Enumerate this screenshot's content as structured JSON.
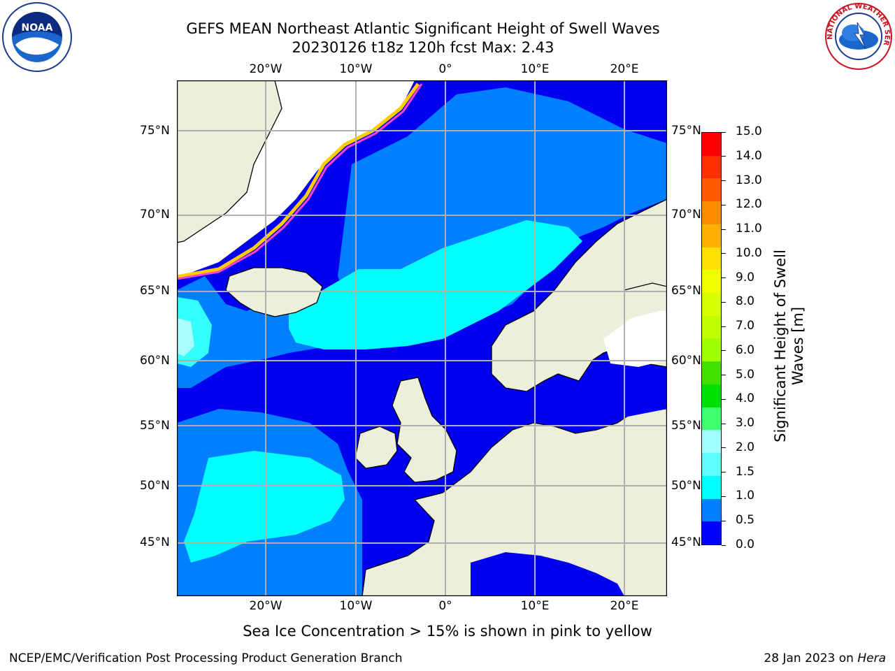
{
  "title": {
    "line1": "GEFS MEAN Northeast Atlantic Significant Height of Swell Waves",
    "line2": "20230126 t18z 120h fcst   Max: 2.43"
  },
  "map": {
    "lon_labels": [
      "20°W",
      "10°W",
      "0°",
      "10°E",
      "20°E"
    ],
    "lat_labels": [
      "75°N",
      "70°N",
      "65°N",
      "60°N",
      "55°N",
      "50°N",
      "45°N"
    ],
    "colors": {
      "ocean_dark": "#0000f0",
      "ocean_mid": "#0080ff",
      "ocean_light": "#00ffff",
      "ocean_lighter": "#66ffff",
      "land": "#eeeedd",
      "gridline": "#b0b0b0",
      "ice_pink": "#ff55cc",
      "ice_yellow": "#ffdd00"
    }
  },
  "colorbar": {
    "label_line1": "Significant Height of Swell",
    "label_line2": "Waves [m]",
    "ticks": [
      "15.0",
      "14.0",
      "13.0",
      "12.0",
      "11.0",
      "10.0",
      "9.0",
      "8.0",
      "7.0",
      "6.0",
      "5.0",
      "4.0",
      "3.0",
      "2.0",
      "1.5",
      "1.0",
      "0.5",
      "0.0"
    ],
    "segments": [
      "#ff0000",
      "#ff3000",
      "#ff5a00",
      "#ff8c00",
      "#ffb000",
      "#ffe000",
      "#f0ff00",
      "#d8ff00",
      "#c0ff00",
      "#a0ff00",
      "#40e000",
      "#00e000",
      "#40ff70",
      "#a0ffff",
      "#60ffff",
      "#00ffff",
      "#0080ff",
      "#0000ff"
    ]
  },
  "note": "Sea Ice Concentration > 15% is shown in pink to yellow",
  "footer": {
    "left": "NCEP/EMC/Verification Post Processing Product Generation Branch",
    "right_prefix": "28 Jan 2023 on",
    "right_host": "Hera"
  },
  "logos": {
    "noaa": "NOAA",
    "nws": "NATIONAL WEATHER SERVICE"
  }
}
